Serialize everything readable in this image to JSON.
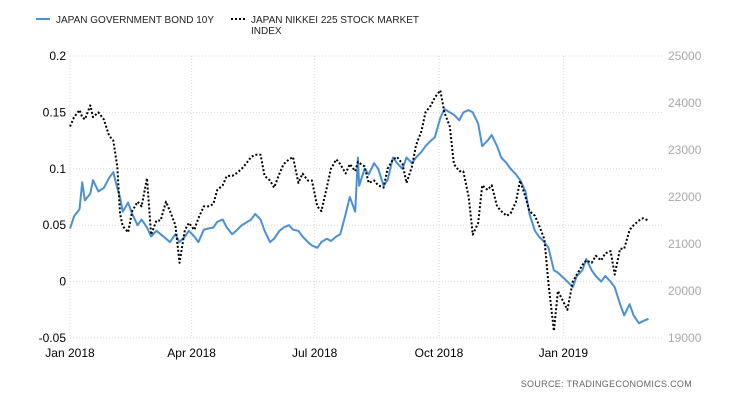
{
  "chart_data": {
    "type": "line",
    "legend": {
      "placement": "top-left",
      "entries": [
        {
          "lines": [
            "JAPAN GOVERNMENT BOND 10Y"
          ],
          "color": "#4a90d9",
          "style": "solid"
        },
        {
          "lines": [
            "JAPAN NIKKEI 225 STOCK MARKET",
            "INDEX"
          ],
          "color": "#000000",
          "style": "dotted"
        }
      ]
    },
    "y_left": {
      "ticks": [
        "0.2",
        "0.15",
        "0.1",
        "0.05",
        "0",
        "-0.05"
      ],
      "tick_values": [
        0.2,
        0.15,
        0.1,
        0.05,
        0,
        -0.05
      ],
      "range": [
        -0.05,
        0.2
      ]
    },
    "y_right": {
      "ticks": [
        "25000",
        "24000",
        "23000",
        "22000",
        "21000",
        "20000",
        "19000"
      ],
      "tick_values": [
        25000,
        24000,
        23000,
        22000,
        21000,
        20000,
        19000
      ],
      "range": [
        19000,
        25000
      ]
    },
    "x_axis": {
      "ticks": [
        "Jan 2018",
        "Apr 2018",
        "Jul 2018",
        "Oct 2018",
        "Jan 2019"
      ],
      "tick_dates": [
        "2018-01-01",
        "2018-04-01",
        "2018-07-01",
        "2018-10-01",
        "2019-01-01"
      ],
      "range": [
        "2018-01-01",
        "2019-03-15"
      ]
    },
    "grid": true,
    "series": [
      {
        "name": "JAPAN GOVERNMENT BOND 10Y",
        "axis": "left",
        "color": "#4a90d9",
        "style": "solid",
        "points": [
          [
            "2018-01-01",
            0.047
          ],
          [
            "2018-01-04",
            0.058
          ],
          [
            "2018-01-08",
            0.064
          ],
          [
            "2018-01-10",
            0.088
          ],
          [
            "2018-01-12",
            0.072
          ],
          [
            "2018-01-16",
            0.078
          ],
          [
            "2018-01-18",
            0.09
          ],
          [
            "2018-01-22",
            0.08
          ],
          [
            "2018-01-26",
            0.083
          ],
          [
            "2018-01-30",
            0.092
          ],
          [
            "2018-02-02",
            0.097
          ],
          [
            "2018-02-05",
            0.083
          ],
          [
            "2018-02-07",
            0.075
          ],
          [
            "2018-02-09",
            0.062
          ],
          [
            "2018-02-13",
            0.07
          ],
          [
            "2018-02-16",
            0.06
          ],
          [
            "2018-02-20",
            0.05
          ],
          [
            "2018-02-23",
            0.055
          ],
          [
            "2018-02-27",
            0.048
          ],
          [
            "2018-03-02",
            0.04
          ],
          [
            "2018-03-06",
            0.045
          ],
          [
            "2018-03-09",
            0.042
          ],
          [
            "2018-03-13",
            0.038
          ],
          [
            "2018-03-16",
            0.035
          ],
          [
            "2018-03-20",
            0.042
          ],
          [
            "2018-03-23",
            0.035
          ],
          [
            "2018-03-27",
            0.04
          ],
          [
            "2018-03-30",
            0.045
          ],
          [
            "2018-04-03",
            0.04
          ],
          [
            "2018-04-06",
            0.035
          ],
          [
            "2018-04-10",
            0.046
          ],
          [
            "2018-04-13",
            0.047
          ],
          [
            "2018-04-17",
            0.048
          ],
          [
            "2018-04-20",
            0.053
          ],
          [
            "2018-04-24",
            0.055
          ],
          [
            "2018-04-27",
            0.048
          ],
          [
            "2018-05-01",
            0.042
          ],
          [
            "2018-05-04",
            0.045
          ],
          [
            "2018-05-08",
            0.05
          ],
          [
            "2018-05-11",
            0.052
          ],
          [
            "2018-05-15",
            0.055
          ],
          [
            "2018-05-18",
            0.06
          ],
          [
            "2018-05-22",
            0.055
          ],
          [
            "2018-05-25",
            0.045
          ],
          [
            "2018-05-29",
            0.035
          ],
          [
            "2018-06-01",
            0.038
          ],
          [
            "2018-06-05",
            0.045
          ],
          [
            "2018-06-08",
            0.048
          ],
          [
            "2018-06-12",
            0.05
          ],
          [
            "2018-06-15",
            0.046
          ],
          [
            "2018-06-19",
            0.045
          ],
          [
            "2018-06-22",
            0.04
          ],
          [
            "2018-06-26",
            0.035
          ],
          [
            "2018-06-29",
            0.032
          ],
          [
            "2018-07-03",
            0.03
          ],
          [
            "2018-07-06",
            0.035
          ],
          [
            "2018-07-10",
            0.038
          ],
          [
            "2018-07-13",
            0.036
          ],
          [
            "2018-07-17",
            0.04
          ],
          [
            "2018-07-20",
            0.042
          ],
          [
            "2018-07-24",
            0.06
          ],
          [
            "2018-07-27",
            0.075
          ],
          [
            "2018-07-31",
            0.062
          ],
          [
            "2018-08-02",
            0.11
          ],
          [
            "2018-08-03",
            0.085
          ],
          [
            "2018-08-07",
            0.1
          ],
          [
            "2018-08-10",
            0.095
          ],
          [
            "2018-08-14",
            0.105
          ],
          [
            "2018-08-17",
            0.1
          ],
          [
            "2018-08-21",
            0.085
          ],
          [
            "2018-08-24",
            0.09
          ],
          [
            "2018-08-28",
            0.11
          ],
          [
            "2018-08-31",
            0.105
          ],
          [
            "2018-09-04",
            0.1
          ],
          [
            "2018-09-07",
            0.11
          ],
          [
            "2018-09-11",
            0.105
          ],
          [
            "2018-09-14",
            0.11
          ],
          [
            "2018-09-18",
            0.115
          ],
          [
            "2018-09-21",
            0.12
          ],
          [
            "2018-09-25",
            0.125
          ],
          [
            "2018-09-28",
            0.128
          ],
          [
            "2018-10-02",
            0.145
          ],
          [
            "2018-10-05",
            0.153
          ],
          [
            "2018-10-09",
            0.15
          ],
          [
            "2018-10-12",
            0.148
          ],
          [
            "2018-10-16",
            0.143
          ],
          [
            "2018-10-19",
            0.15
          ],
          [
            "2018-10-23",
            0.152
          ],
          [
            "2018-10-26",
            0.15
          ],
          [
            "2018-10-30",
            0.14
          ],
          [
            "2018-11-02",
            0.12
          ],
          [
            "2018-11-06",
            0.125
          ],
          [
            "2018-11-09",
            0.13
          ],
          [
            "2018-11-13",
            0.12
          ],
          [
            "2018-11-16",
            0.11
          ],
          [
            "2018-11-20",
            0.105
          ],
          [
            "2018-11-23",
            0.1
          ],
          [
            "2018-11-27",
            0.095
          ],
          [
            "2018-11-30",
            0.09
          ],
          [
            "2018-12-04",
            0.08
          ],
          [
            "2018-12-07",
            0.06
          ],
          [
            "2018-12-11",
            0.045
          ],
          [
            "2018-12-14",
            0.04
          ],
          [
            "2018-12-18",
            0.035
          ],
          [
            "2018-12-21",
            0.03
          ],
          [
            "2018-12-25",
            0.01
          ],
          [
            "2018-12-28",
            0.008
          ],
          [
            "2019-01-04",
            0.0
          ],
          [
            "2019-01-08",
            -0.005
          ],
          [
            "2019-01-11",
            0.005
          ],
          [
            "2019-01-15",
            0.01
          ],
          [
            "2019-01-18",
            0.02
          ],
          [
            "2019-01-22",
            0.01
          ],
          [
            "2019-01-25",
            0.005
          ],
          [
            "2019-01-29",
            0.0
          ],
          [
            "2019-02-01",
            0.005
          ],
          [
            "2019-02-05",
            0.0
          ],
          [
            "2019-02-08",
            -0.005
          ],
          [
            "2019-02-12",
            -0.02
          ],
          [
            "2019-02-15",
            -0.03
          ],
          [
            "2019-02-19",
            -0.02
          ],
          [
            "2019-02-22",
            -0.03
          ],
          [
            "2019-02-26",
            -0.037
          ],
          [
            "2019-03-01",
            -0.035
          ],
          [
            "2019-03-05",
            -0.033
          ]
        ]
      },
      {
        "name": "JAPAN NIKKEI 225 STOCK MARKET INDEX",
        "axis": "right",
        "color": "#000000",
        "style": "dotted",
        "points": [
          [
            "2018-01-01",
            23500
          ],
          [
            "2018-01-04",
            23700
          ],
          [
            "2018-01-08",
            23850
          ],
          [
            "2018-01-10",
            23700
          ],
          [
            "2018-01-12",
            23650
          ],
          [
            "2018-01-16",
            23950
          ],
          [
            "2018-01-18",
            23700
          ],
          [
            "2018-01-22",
            23800
          ],
          [
            "2018-01-26",
            23650
          ],
          [
            "2018-01-30",
            23300
          ],
          [
            "2018-02-02",
            23200
          ],
          [
            "2018-02-05",
            22650
          ],
          [
            "2018-02-07",
            21650
          ],
          [
            "2018-02-09",
            21380
          ],
          [
            "2018-02-13",
            21250
          ],
          [
            "2018-02-16",
            21700
          ],
          [
            "2018-02-20",
            21900
          ],
          [
            "2018-02-23",
            21800
          ],
          [
            "2018-02-27",
            22400
          ],
          [
            "2018-03-02",
            21200
          ],
          [
            "2018-03-06",
            21500
          ],
          [
            "2018-03-09",
            21500
          ],
          [
            "2018-03-13",
            21900
          ],
          [
            "2018-03-16",
            21700
          ],
          [
            "2018-03-20",
            21400
          ],
          [
            "2018-03-23",
            20600
          ],
          [
            "2018-03-27",
            21300
          ],
          [
            "2018-03-30",
            21450
          ],
          [
            "2018-04-03",
            21300
          ],
          [
            "2018-04-06",
            21550
          ],
          [
            "2018-04-10",
            21800
          ],
          [
            "2018-04-13",
            21800
          ],
          [
            "2018-04-17",
            21850
          ],
          [
            "2018-04-20",
            22150
          ],
          [
            "2018-04-24",
            22250
          ],
          [
            "2018-04-27",
            22450
          ],
          [
            "2018-05-01",
            22450
          ],
          [
            "2018-05-04",
            22500
          ],
          [
            "2018-05-08",
            22600
          ],
          [
            "2018-05-11",
            22700
          ],
          [
            "2018-05-15",
            22850
          ],
          [
            "2018-05-18",
            22900
          ],
          [
            "2018-05-22",
            22900
          ],
          [
            "2018-05-25",
            22450
          ],
          [
            "2018-05-29",
            22350
          ],
          [
            "2018-06-01",
            22200
          ],
          [
            "2018-06-05",
            22500
          ],
          [
            "2018-06-08",
            22700
          ],
          [
            "2018-06-12",
            22800
          ],
          [
            "2018-06-15",
            22850
          ],
          [
            "2018-06-19",
            22300
          ],
          [
            "2018-06-22",
            22500
          ],
          [
            "2018-06-26",
            22350
          ],
          [
            "2018-06-29",
            22350
          ],
          [
            "2018-07-03",
            21800
          ],
          [
            "2018-07-06",
            21700
          ],
          [
            "2018-07-10",
            22200
          ],
          [
            "2018-07-13",
            22600
          ],
          [
            "2018-07-17",
            22800
          ],
          [
            "2018-07-20",
            22700
          ],
          [
            "2018-07-24",
            22500
          ],
          [
            "2018-07-27",
            22700
          ],
          [
            "2018-07-31",
            22550
          ],
          [
            "2018-08-02",
            22750
          ],
          [
            "2018-08-07",
            22650
          ],
          [
            "2018-08-10",
            22300
          ],
          [
            "2018-08-14",
            22350
          ],
          [
            "2018-08-17",
            22250
          ],
          [
            "2018-08-21",
            22200
          ],
          [
            "2018-08-24",
            22600
          ],
          [
            "2018-08-28",
            22800
          ],
          [
            "2018-08-31",
            22850
          ],
          [
            "2018-09-04",
            22700
          ],
          [
            "2018-09-07",
            22300
          ],
          [
            "2018-09-11",
            22650
          ],
          [
            "2018-09-14",
            23100
          ],
          [
            "2018-09-18",
            23400
          ],
          [
            "2018-09-21",
            23800
          ],
          [
            "2018-09-25",
            23950
          ],
          [
            "2018-09-28",
            24120
          ],
          [
            "2018-10-02",
            24270
          ],
          [
            "2018-10-05",
            23800
          ],
          [
            "2018-10-09",
            23500
          ],
          [
            "2018-10-12",
            22700
          ],
          [
            "2018-10-16",
            22550
          ],
          [
            "2018-10-19",
            22550
          ],
          [
            "2018-10-23",
            22000
          ],
          [
            "2018-10-26",
            21200
          ],
          [
            "2018-10-30",
            21450
          ],
          [
            "2018-11-02",
            22250
          ],
          [
            "2018-11-06",
            22150
          ],
          [
            "2018-11-09",
            22250
          ],
          [
            "2018-11-13",
            21800
          ],
          [
            "2018-11-16",
            21700
          ],
          [
            "2018-11-20",
            21600
          ],
          [
            "2018-11-23",
            21650
          ],
          [
            "2018-11-27",
            21900
          ],
          [
            "2018-11-30",
            22350
          ],
          [
            "2018-12-04",
            22000
          ],
          [
            "2018-12-07",
            21700
          ],
          [
            "2018-12-11",
            21600
          ],
          [
            "2018-12-14",
            21400
          ],
          [
            "2018-12-18",
            21100
          ],
          [
            "2018-12-21",
            20150
          ],
          [
            "2018-12-25",
            19150
          ],
          [
            "2018-12-28",
            20000
          ],
          [
            "2019-01-04",
            19600
          ],
          [
            "2019-01-08",
            20200
          ],
          [
            "2019-01-11",
            20350
          ],
          [
            "2019-01-15",
            20550
          ],
          [
            "2019-01-18",
            20650
          ],
          [
            "2019-01-22",
            20600
          ],
          [
            "2019-01-25",
            20750
          ],
          [
            "2019-01-29",
            20650
          ],
          [
            "2019-02-01",
            20800
          ],
          [
            "2019-02-05",
            20850
          ],
          [
            "2019-02-08",
            20350
          ],
          [
            "2019-02-12",
            20900
          ],
          [
            "2019-02-15",
            20900
          ],
          [
            "2019-02-19",
            21300
          ],
          [
            "2019-02-22",
            21400
          ],
          [
            "2019-02-26",
            21500
          ],
          [
            "2019-03-01",
            21550
          ],
          [
            "2019-03-05",
            21500
          ]
        ]
      }
    ],
    "source": "SOURCE:  TRADINGECONOMICS.COM"
  }
}
